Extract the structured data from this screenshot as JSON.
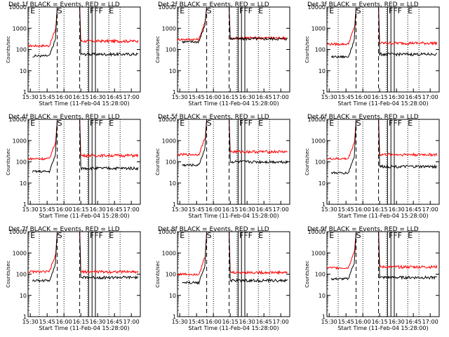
{
  "figure": {
    "background": "#ffffff",
    "events_color": "#000000",
    "lld_color": "#ff0000",
    "xlabel": "Start Time (11-Feb-04 15:28:00)",
    "ylabel": "Counts/sec",
    "x_ticks": [
      "15:30",
      "15:45",
      "16:00",
      "16:15",
      "16:30",
      "16:45",
      "17:00"
    ],
    "y_ticks": [
      "1",
      "10",
      "100",
      "1000",
      "10000"
    ]
  },
  "chart_data": [
    {
      "type": "line",
      "title": "Det 1f BLACK = Events, RED = LLD",
      "flag_labels": [
        "E",
        "S",
        "FFF",
        "E"
      ],
      "events_pre": 50,
      "lld_pre": 150,
      "events_post": 60,
      "lld_post": 250,
      "xlabel": "Start Time (11-Feb-04 15:28:00)",
      "ylabel": "Counts/sec",
      "ylim": [
        1,
        10000
      ],
      "log_y": true,
      "series": [
        {
          "name": "BLACK = Events"
        },
        {
          "name": "RED = LLD"
        }
      ]
    },
    {
      "type": "line",
      "title": "Det 2f BLACK = Events, RED = LLD",
      "flag_labels": [
        "E",
        "S",
        "FFF",
        "E"
      ],
      "events_pre": 230,
      "lld_pre": 300,
      "events_post": 320,
      "lld_post": 350,
      "xlabel": "Start Time (11-Feb-04 15:28:00)",
      "ylabel": "Counts/sec",
      "ylim": [
        1,
        10000
      ],
      "log_y": true,
      "series": [
        {
          "name": "BLACK = Events"
        },
        {
          "name": "RED = LLD"
        }
      ]
    },
    {
      "type": "line",
      "title": "Det 3f BLACK = Events, RED = LLD",
      "flag_labels": [
        "E",
        "S",
        "FFF",
        "E"
      ],
      "events_pre": 45,
      "lld_pre": 180,
      "events_post": 60,
      "lld_post": 200,
      "xlabel": "Start Time (11-Feb-04 15:28:00)",
      "ylabel": "Counts/sec",
      "ylim": [
        1,
        10000
      ],
      "log_y": true,
      "series": [
        {
          "name": "BLACK = Events"
        },
        {
          "name": "RED = LLD"
        }
      ]
    },
    {
      "type": "line",
      "title": "Det 4f BLACK = Events, RED = LLD",
      "flag_labels": [
        "E",
        "S",
        "FFF",
        "E"
      ],
      "events_pre": 35,
      "lld_pre": 140,
      "events_post": 50,
      "lld_post": 200,
      "xlabel": "Start Time (11-Feb-04 15:28:00)",
      "ylabel": "Counts/sec",
      "ylim": [
        1,
        10000
      ],
      "log_y": true,
      "series": [
        {
          "name": "BLACK = Events"
        },
        {
          "name": "RED = LLD"
        }
      ]
    },
    {
      "type": "line",
      "title": "Det 5f BLACK = Events, RED = LLD",
      "flag_labels": [
        "E",
        "S",
        "FFF",
        "E"
      ],
      "events_pre": 70,
      "lld_pre": 220,
      "events_post": 100,
      "lld_post": 300,
      "xlabel": "Start Time (11-Feb-04 15:28:00)",
      "ylabel": "Counts/sec",
      "ylim": [
        1,
        10000
      ],
      "log_y": true,
      "series": [
        {
          "name": "BLACK = Events"
        },
        {
          "name": "RED = LLD"
        }
      ]
    },
    {
      "type": "line",
      "title": "Det 6f BLACK = Events, RED = LLD",
      "flag_labels": [
        "E",
        "S",
        "FFF",
        "E"
      ],
      "events_pre": 30,
      "lld_pre": 140,
      "events_post": 60,
      "lld_post": 220,
      "xlabel": "Start Time (11-Feb-04 15:28:00)",
      "ylabel": "Counts/sec",
      "ylim": [
        1,
        10000
      ],
      "log_y": true,
      "series": [
        {
          "name": "BLACK = Events"
        },
        {
          "name": "RED = LLD"
        }
      ]
    },
    {
      "type": "line",
      "title": "Det 7f BLACK = Events, RED = LLD",
      "flag_labels": [
        "E",
        "S",
        "FFF",
        "E"
      ],
      "events_pre": 50,
      "lld_pre": 130,
      "events_post": 70,
      "lld_post": 130,
      "xlabel": "Start Time (11-Feb-04 15:28:00)",
      "ylabel": "Counts/sec",
      "ylim": [
        1,
        10000
      ],
      "log_y": true,
      "series": [
        {
          "name": "BLACK = Events"
        },
        {
          "name": "RED = LLD"
        }
      ]
    },
    {
      "type": "line",
      "title": "Det 8f BLACK = Events, RED = LLD",
      "flag_labels": [
        "E",
        "S",
        "FFF",
        "E"
      ],
      "events_pre": 40,
      "lld_pre": 100,
      "events_post": 50,
      "lld_post": 120,
      "xlabel": "Start Time (11-Feb-04 15:28:00)",
      "ylabel": "Counts/sec",
      "ylim": [
        1,
        10000
      ],
      "log_y": true,
      "series": [
        {
          "name": "BLACK = Events"
        },
        {
          "name": "RED = LLD"
        }
      ]
    },
    {
      "type": "line",
      "title": "Det 9f BLACK = Events, RED = LLD",
      "flag_labels": [
        "E",
        "S",
        "FFF",
        "E"
      ],
      "events_pre": 60,
      "lld_pre": 200,
      "events_post": 70,
      "lld_post": 220,
      "xlabel": "Start Time (11-Feb-04 15:28:00)",
      "ylabel": "Counts/sec",
      "ylim": [
        1,
        10000
      ],
      "log_y": true,
      "series": [
        {
          "name": "BLACK = Events"
        },
        {
          "name": "RED = LLD"
        }
      ]
    }
  ]
}
